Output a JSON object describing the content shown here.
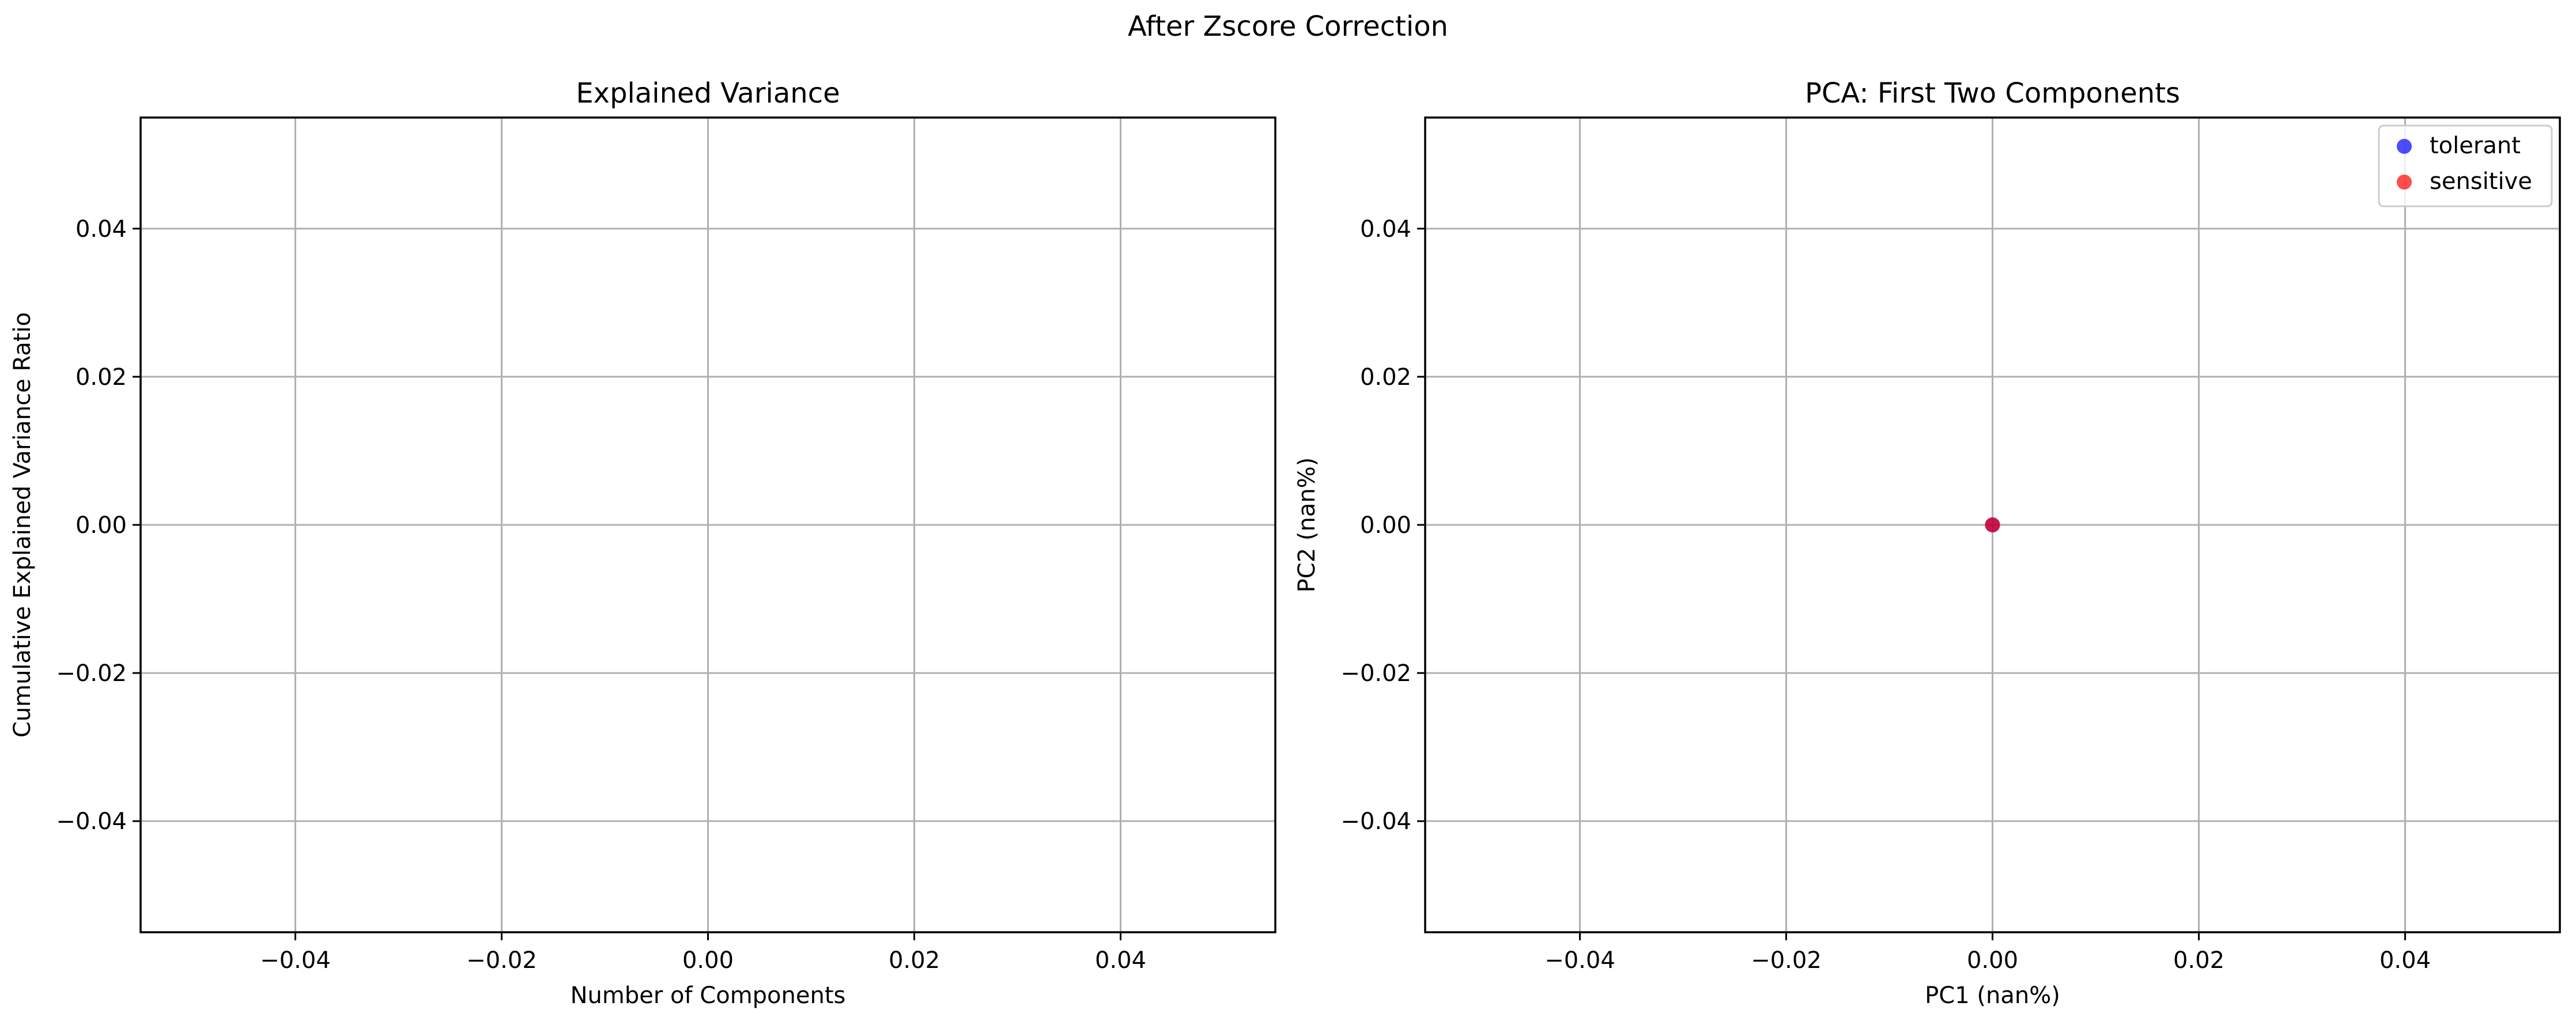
{
  "figure": {
    "suptitle": "After Zscore Correction"
  },
  "chart_data": [
    {
      "type": "line",
      "title": "Explained Variance",
      "xlabel": "Number of Components",
      "ylabel": "Cumulative Explained Variance Ratio",
      "xlim": [
        -0.055,
        0.055
      ],
      "ylim": [
        -0.055,
        0.055
      ],
      "xticks": [
        -0.04,
        -0.02,
        0.0,
        0.02,
        0.04
      ],
      "yticks": [
        -0.04,
        -0.02,
        0.0,
        0.02,
        0.04
      ],
      "xtick_labels": [
        "−0.04",
        "−0.02",
        "0.00",
        "0.02",
        "0.04"
      ],
      "ytick_labels": [
        "−0.04",
        "−0.02",
        "0.00",
        "0.02",
        "0.04"
      ],
      "grid": true,
      "series": []
    },
    {
      "type": "scatter",
      "title": "PCA: First Two Components",
      "xlabel": "PC1 (nan%)",
      "ylabel": "PC2 (nan%)",
      "xlim": [
        -0.055,
        0.055
      ],
      "ylim": [
        -0.055,
        0.055
      ],
      "xticks": [
        -0.04,
        -0.02,
        0.0,
        0.02,
        0.04
      ],
      "yticks": [
        -0.04,
        -0.02,
        0.0,
        0.02,
        0.04
      ],
      "xtick_labels": [
        "−0.04",
        "−0.02",
        "0.00",
        "0.02",
        "0.04"
      ],
      "ytick_labels": [
        "−0.04",
        "−0.02",
        "0.00",
        "0.02",
        "0.04"
      ],
      "grid": true,
      "legend": "top-right",
      "series": [
        {
          "name": "tolerant",
          "color": "#0000ff",
          "points": [
            [
              0.0,
              0.0
            ]
          ]
        },
        {
          "name": "sensitive",
          "color": "#ff0000",
          "points": [
            [
              0.0,
              0.0
            ]
          ]
        }
      ]
    }
  ]
}
